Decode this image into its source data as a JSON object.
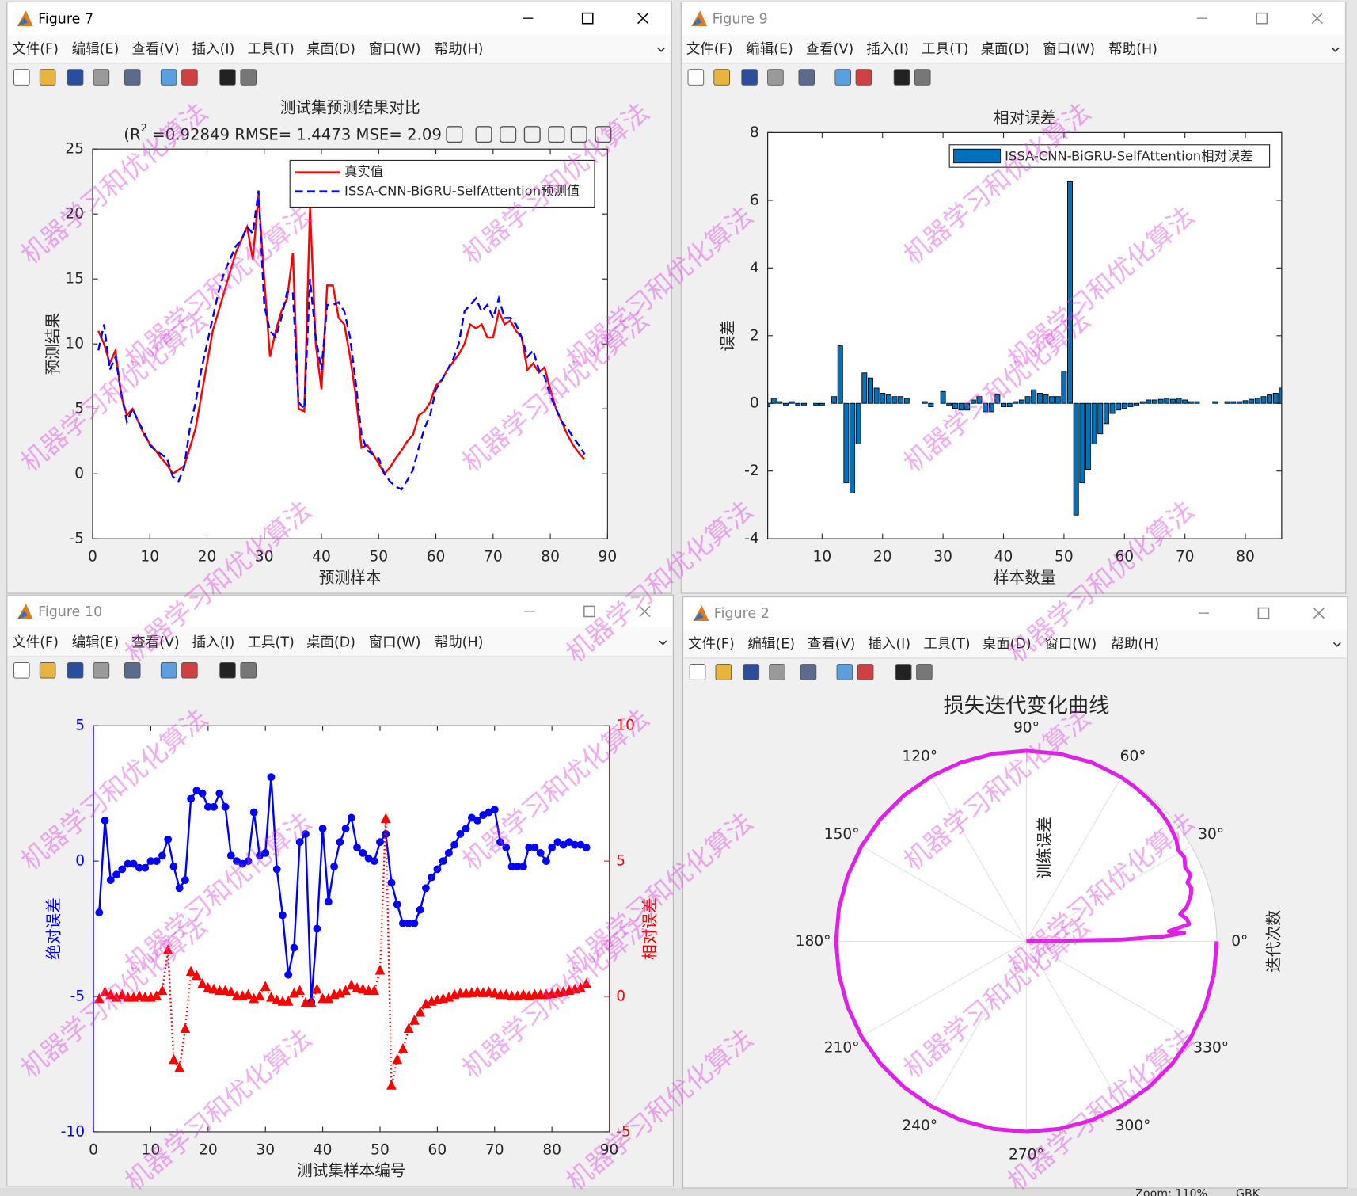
{
  "windows": [
    {
      "title": "Figure 7"
    },
    {
      "title": "Figure 9"
    },
    {
      "title": "Figure 10"
    },
    {
      "title": "Figure 2"
    }
  ],
  "menu": [
    "文件(F)",
    "编辑(E)",
    "查看(V)",
    "插入(I)",
    "工具(T)",
    "桌面(D)",
    "窗口(W)",
    "帮助(H)"
  ],
  "watermark": "机器学习和优化算法",
  "status": [
    "Zoom: 110%",
    "GBK"
  ],
  "chart_data": [
    {
      "type": "line",
      "title": "测试集预测结果对比",
      "subtitle": [
        "(R",
        "2",
        " =0.92849 RMSE= 1.4473 MSE= 2.09"
      ],
      "xlabel": "预测样本",
      "ylabel": "预测结果",
      "x": [
        1,
        2,
        3,
        4,
        5,
        6,
        7,
        8,
        9,
        10,
        11,
        12,
        13,
        14,
        15,
        16,
        17,
        18,
        19,
        20,
        21,
        22,
        23,
        24,
        25,
        26,
        27,
        28,
        29,
        30,
        31,
        32,
        33,
        34,
        35,
        36,
        37,
        38,
        39,
        40,
        41,
        42,
        43,
        44,
        45,
        46,
        47,
        48,
        49,
        50,
        51,
        52,
        53,
        54,
        55,
        56,
        57,
        58,
        59,
        60,
        61,
        62,
        63,
        64,
        65,
        66,
        67,
        68,
        69,
        70,
        71,
        72,
        73,
        74,
        75,
        76,
        77,
        78,
        79,
        80,
        81,
        82,
        83,
        84,
        85,
        86
      ],
      "series": [
        {
          "name": "真实值",
          "color": "#ff0000",
          "style": "solid",
          "values": [
            11,
            10,
            8.5,
            9.5,
            6,
            4.5,
            5,
            4,
            3,
            2.3,
            1.8,
            1.2,
            0.7,
            0,
            0.3,
            0.6,
            2,
            3.5,
            6,
            8.5,
            11,
            12.5,
            14,
            15.5,
            17,
            18,
            19,
            16.5,
            21.5,
            15,
            9,
            11,
            12.5,
            13.5,
            17,
            5,
            4.8,
            20.5,
            10,
            6.5,
            14.5,
            14.5,
            12,
            11.5,
            9,
            6,
            2,
            2.2,
            1.5,
            0.8,
            0,
            0.5,
            1.2,
            1.8,
            2.5,
            3,
            4.5,
            4.8,
            5.5,
            6.8,
            7.2,
            8,
            8.6,
            9.2,
            10,
            11.5,
            11.2,
            11.5,
            10.5,
            10.5,
            12.5,
            11.5,
            11.8,
            11,
            10.5,
            8,
            8.5,
            7.8,
            8.2,
            6.5,
            5,
            4,
            3,
            2.2,
            1.6,
            1.1
          ]
        },
        {
          "name": "ISSA-CNN-BiGRU-SelfAttention预测值",
          "color": "#0000ff",
          "style": "dashed",
          "values": [
            9.5,
            11.5,
            8,
            9,
            6.2,
            4,
            5,
            4,
            3.2,
            2.2,
            1.8,
            1.5,
            1.2,
            -0.2,
            -0.6,
            0.5,
            3.5,
            5.5,
            8,
            10,
            12,
            14,
            15.5,
            16.5,
            17.5,
            18,
            19,
            18.5,
            21.8,
            13,
            11,
            10.5,
            12,
            14,
            14,
            5.5,
            5,
            15,
            10.5,
            8,
            13,
            13,
            13.2,
            12.5,
            10.5,
            7,
            3,
            1.8,
            1.5,
            1.2,
            0,
            -0.6,
            -1,
            -1.2,
            -0.5,
            0.3,
            2,
            3.5,
            4.5,
            6.5,
            7.2,
            8,
            8.8,
            10,
            12.5,
            13,
            13.5,
            12.5,
            13,
            12,
            13.5,
            12,
            12,
            11.5,
            10.5,
            9,
            9.5,
            8,
            7.5,
            6,
            5,
            4,
            3.5,
            2.8,
            2.2,
            1.5
          ]
        }
      ],
      "xlim": [
        0,
        90
      ],
      "xticks": [
        0,
        10,
        20,
        30,
        40,
        50,
        60,
        70,
        80,
        90
      ],
      "ylim": [
        -5,
        25
      ],
      "yticks": [
        -5,
        0,
        5,
        10,
        15,
        20,
        25
      ],
      "legend": "northeast"
    },
    {
      "type": "bar",
      "title": "相对误差",
      "xlabel": "样本数量",
      "ylabel": "误差",
      "x": [
        1,
        2,
        3,
        4,
        5,
        6,
        7,
        8,
        9,
        10,
        11,
        12,
        13,
        14,
        15,
        16,
        17,
        18,
        19,
        20,
        21,
        22,
        23,
        24,
        25,
        26,
        27,
        28,
        29,
        30,
        31,
        32,
        33,
        34,
        35,
        36,
        37,
        38,
        39,
        40,
        41,
        42,
        43,
        44,
        45,
        46,
        47,
        48,
        49,
        50,
        51,
        52,
        53,
        54,
        55,
        56,
        57,
        58,
        59,
        60,
        61,
        62,
        63,
        64,
        65,
        66,
        67,
        68,
        69,
        70,
        71,
        72,
        73,
        74,
        75,
        76,
        77,
        78,
        79,
        80,
        81,
        82,
        83,
        84,
        85,
        86
      ],
      "series": [
        {
          "name": "ISSA-CNN-BiGRU-SelfAttention相对误差",
          "color": "#0072bd",
          "values": [
            -0.1,
            0.15,
            0.05,
            -0.05,
            0.05,
            -0.05,
            -0.05,
            0,
            -0.05,
            -0.05,
            0,
            0.2,
            1.7,
            -2.35,
            -2.65,
            -1.2,
            0.9,
            0.75,
            0.45,
            0.3,
            0.25,
            0.2,
            0.2,
            0.15,
            0,
            0,
            0.05,
            -0.1,
            0,
            0.35,
            -0.05,
            -0.15,
            -0.2,
            -0.2,
            0.1,
            0.2,
            -0.25,
            -0.25,
            0.25,
            -0.1,
            -0.1,
            0.05,
            0.1,
            0.2,
            0.4,
            0.3,
            0.25,
            0.2,
            0.2,
            0.95,
            6.55,
            -3.3,
            -2.35,
            -1.95,
            -1.2,
            -0.9,
            -0.6,
            -0.3,
            -0.2,
            -0.15,
            -0.1,
            -0.05,
            0.05,
            0.1,
            0.1,
            0.12,
            0.15,
            0.12,
            0.15,
            0.1,
            0.05,
            0.05,
            0,
            0,
            0.05,
            0,
            0.05,
            0.05,
            0.05,
            0.08,
            0.12,
            0.15,
            0.2,
            0.25,
            0.3,
            0.45
          ]
        }
      ],
      "xlim": [
        1,
        86
      ],
      "xticks": [
        10,
        20,
        30,
        40,
        50,
        60,
        70,
        80
      ],
      "ylim": [
        -4,
        8
      ],
      "yticks": [
        -4,
        -2,
        0,
        2,
        4,
        6,
        8
      ],
      "legend": "northeast"
    },
    {
      "type": "line",
      "xlabel": "测试集样本编号",
      "ylabel": "绝对误差",
      "y2label": "相对误差",
      "x": [
        1,
        2,
        3,
        4,
        5,
        6,
        7,
        8,
        9,
        10,
        11,
        12,
        13,
        14,
        15,
        16,
        17,
        18,
        19,
        20,
        21,
        22,
        23,
        24,
        25,
        26,
        27,
        28,
        29,
        30,
        31,
        32,
        33,
        34,
        35,
        36,
        37,
        38,
        39,
        40,
        41,
        42,
        43,
        44,
        45,
        46,
        47,
        48,
        49,
        50,
        51,
        52,
        53,
        54,
        55,
        56,
        57,
        58,
        59,
        60,
        61,
        62,
        63,
        64,
        65,
        66,
        67,
        68,
        69,
        70,
        71,
        72,
        73,
        74,
        75,
        76,
        77,
        78,
        79,
        80,
        81,
        82,
        83,
        84,
        85,
        86
      ],
      "series": [
        {
          "color": "#0000ff",
          "style": "solid",
          "marker": "circle",
          "axis": "y",
          "values": [
            -1.9,
            1.5,
            -0.7,
            -0.5,
            -0.3,
            -0.1,
            -0.1,
            -0.25,
            -0.25,
            0,
            0,
            0.2,
            0.8,
            -0.2,
            -1.0,
            -0.7,
            2.3,
            2.6,
            2.5,
            2.0,
            2.0,
            2.5,
            2.0,
            0.2,
            0.0,
            -0.1,
            0.0,
            1.8,
            0.2,
            0.3,
            3.1,
            -0.3,
            -2.0,
            -4.2,
            -3.2,
            0.7,
            1.0,
            -5.2,
            -2.5,
            1.2,
            -1.5,
            -0.2,
            0.7,
            1.2,
            1.6,
            0.5,
            0.3,
            0.1,
            0.0,
            0.7,
            1.0,
            -0.8,
            -1.6,
            -2.3,
            -2.3,
            -2.3,
            -1.8,
            -1.0,
            -0.6,
            -0.3,
            0.0,
            0.3,
            0.6,
            1.0,
            1.2,
            1.6,
            1.5,
            1.7,
            1.8,
            1.9,
            0.7,
            0.5,
            -0.2,
            -0.2,
            -0.2,
            0.5,
            0.5,
            0.3,
            0.0,
            0.5,
            0.7,
            0.6,
            0.7,
            0.6,
            0.6,
            0.5
          ]
        },
        {
          "color": "#ff0000",
          "style": "dotted",
          "marker": "triangle",
          "axis": "y2",
          "values": [
            -0.1,
            0.15,
            0.05,
            -0.05,
            0.05,
            -0.05,
            -0.05,
            0,
            -0.05,
            -0.05,
            0,
            0.2,
            1.7,
            -2.35,
            -2.65,
            -1.2,
            0.9,
            0.75,
            0.45,
            0.3,
            0.25,
            0.2,
            0.2,
            0.15,
            0,
            0,
            0.05,
            -0.1,
            0,
            0.35,
            -0.05,
            -0.15,
            -0.2,
            -0.2,
            0.1,
            0.2,
            -0.25,
            -0.25,
            0.25,
            -0.1,
            -0.1,
            0.05,
            0.1,
            0.2,
            0.4,
            0.3,
            0.25,
            0.2,
            0.2,
            0.95,
            6.55,
            -3.3,
            -2.35,
            -1.95,
            -1.2,
            -0.9,
            -0.6,
            -0.3,
            -0.2,
            -0.15,
            -0.1,
            -0.05,
            0.05,
            0.1,
            0.1,
            0.12,
            0.15,
            0.12,
            0.15,
            0.1,
            0.05,
            0.05,
            0,
            0,
            0.05,
            0,
            0.05,
            0.05,
            0.05,
            0.08,
            0.12,
            0.15,
            0.2,
            0.25,
            0.3,
            0.45
          ]
        }
      ],
      "xlim": [
        0,
        90
      ],
      "xticks": [
        0,
        10,
        20,
        30,
        40,
        50,
        60,
        70,
        80,
        90
      ],
      "ylim": [
        -10,
        5
      ],
      "yticks": [
        -10,
        -5,
        0,
        5
      ],
      "y2lim": [
        -5,
        10
      ],
      "y2ticks": [
        -5,
        0,
        5,
        10
      ]
    },
    {
      "type": "polar",
      "title": "损失迭代变化曲线",
      "rlabel": "训练误差",
      "thetalabel": "迭代次数",
      "color": "#e020e8",
      "theta": [
        0,
        1,
        2,
        3,
        4,
        5,
        6,
        8,
        10,
        12,
        14,
        16,
        18,
        20,
        22,
        25,
        28,
        31,
        34,
        37,
        40,
        45,
        50,
        55,
        60,
        70,
        80,
        90,
        100,
        110,
        120,
        130,
        140,
        150,
        160,
        170,
        180,
        190,
        200,
        210,
        220,
        230,
        240,
        250,
        260,
        270,
        280,
        290,
        300,
        310,
        320,
        330,
        340,
        350,
        360
      ],
      "r": [
        0,
        0.5,
        0.72,
        0.83,
        0.75,
        0.8,
        0.86,
        0.85,
        0.82,
        0.86,
        0.88,
        0.9,
        0.91,
        0.9,
        0.93,
        0.92,
        0.94,
        0.93,
        0.95,
        0.96,
        0.97,
        0.98,
        0.985,
        0.99,
        0.995,
        1,
        1,
        1,
        1,
        1,
        1,
        1,
        1,
        1,
        1,
        1,
        1,
        1,
        1,
        1,
        1,
        1,
        1,
        1,
        1,
        1,
        1,
        1,
        1,
        1,
        1,
        1,
        1,
        1,
        1
      ],
      "rlim": [
        0,
        1
      ],
      "thetaticks": [
        {
          "value": 0,
          "label": "0°"
        },
        {
          "value": 30,
          "label": "30°"
        },
        {
          "value": 60,
          "label": "60°"
        },
        {
          "value": 90,
          "label": "90°"
        },
        {
          "value": 120,
          "label": "120°"
        },
        {
          "value": 150,
          "label": "150°"
        },
        {
          "value": 180,
          "label": "180°"
        },
        {
          "value": 210,
          "label": "210°"
        },
        {
          "value": 240,
          "label": "240°"
        },
        {
          "value": 270,
          "label": "270°"
        },
        {
          "value": 300,
          "label": "300°"
        },
        {
          "value": 330,
          "label": "330°"
        }
      ]
    }
  ]
}
